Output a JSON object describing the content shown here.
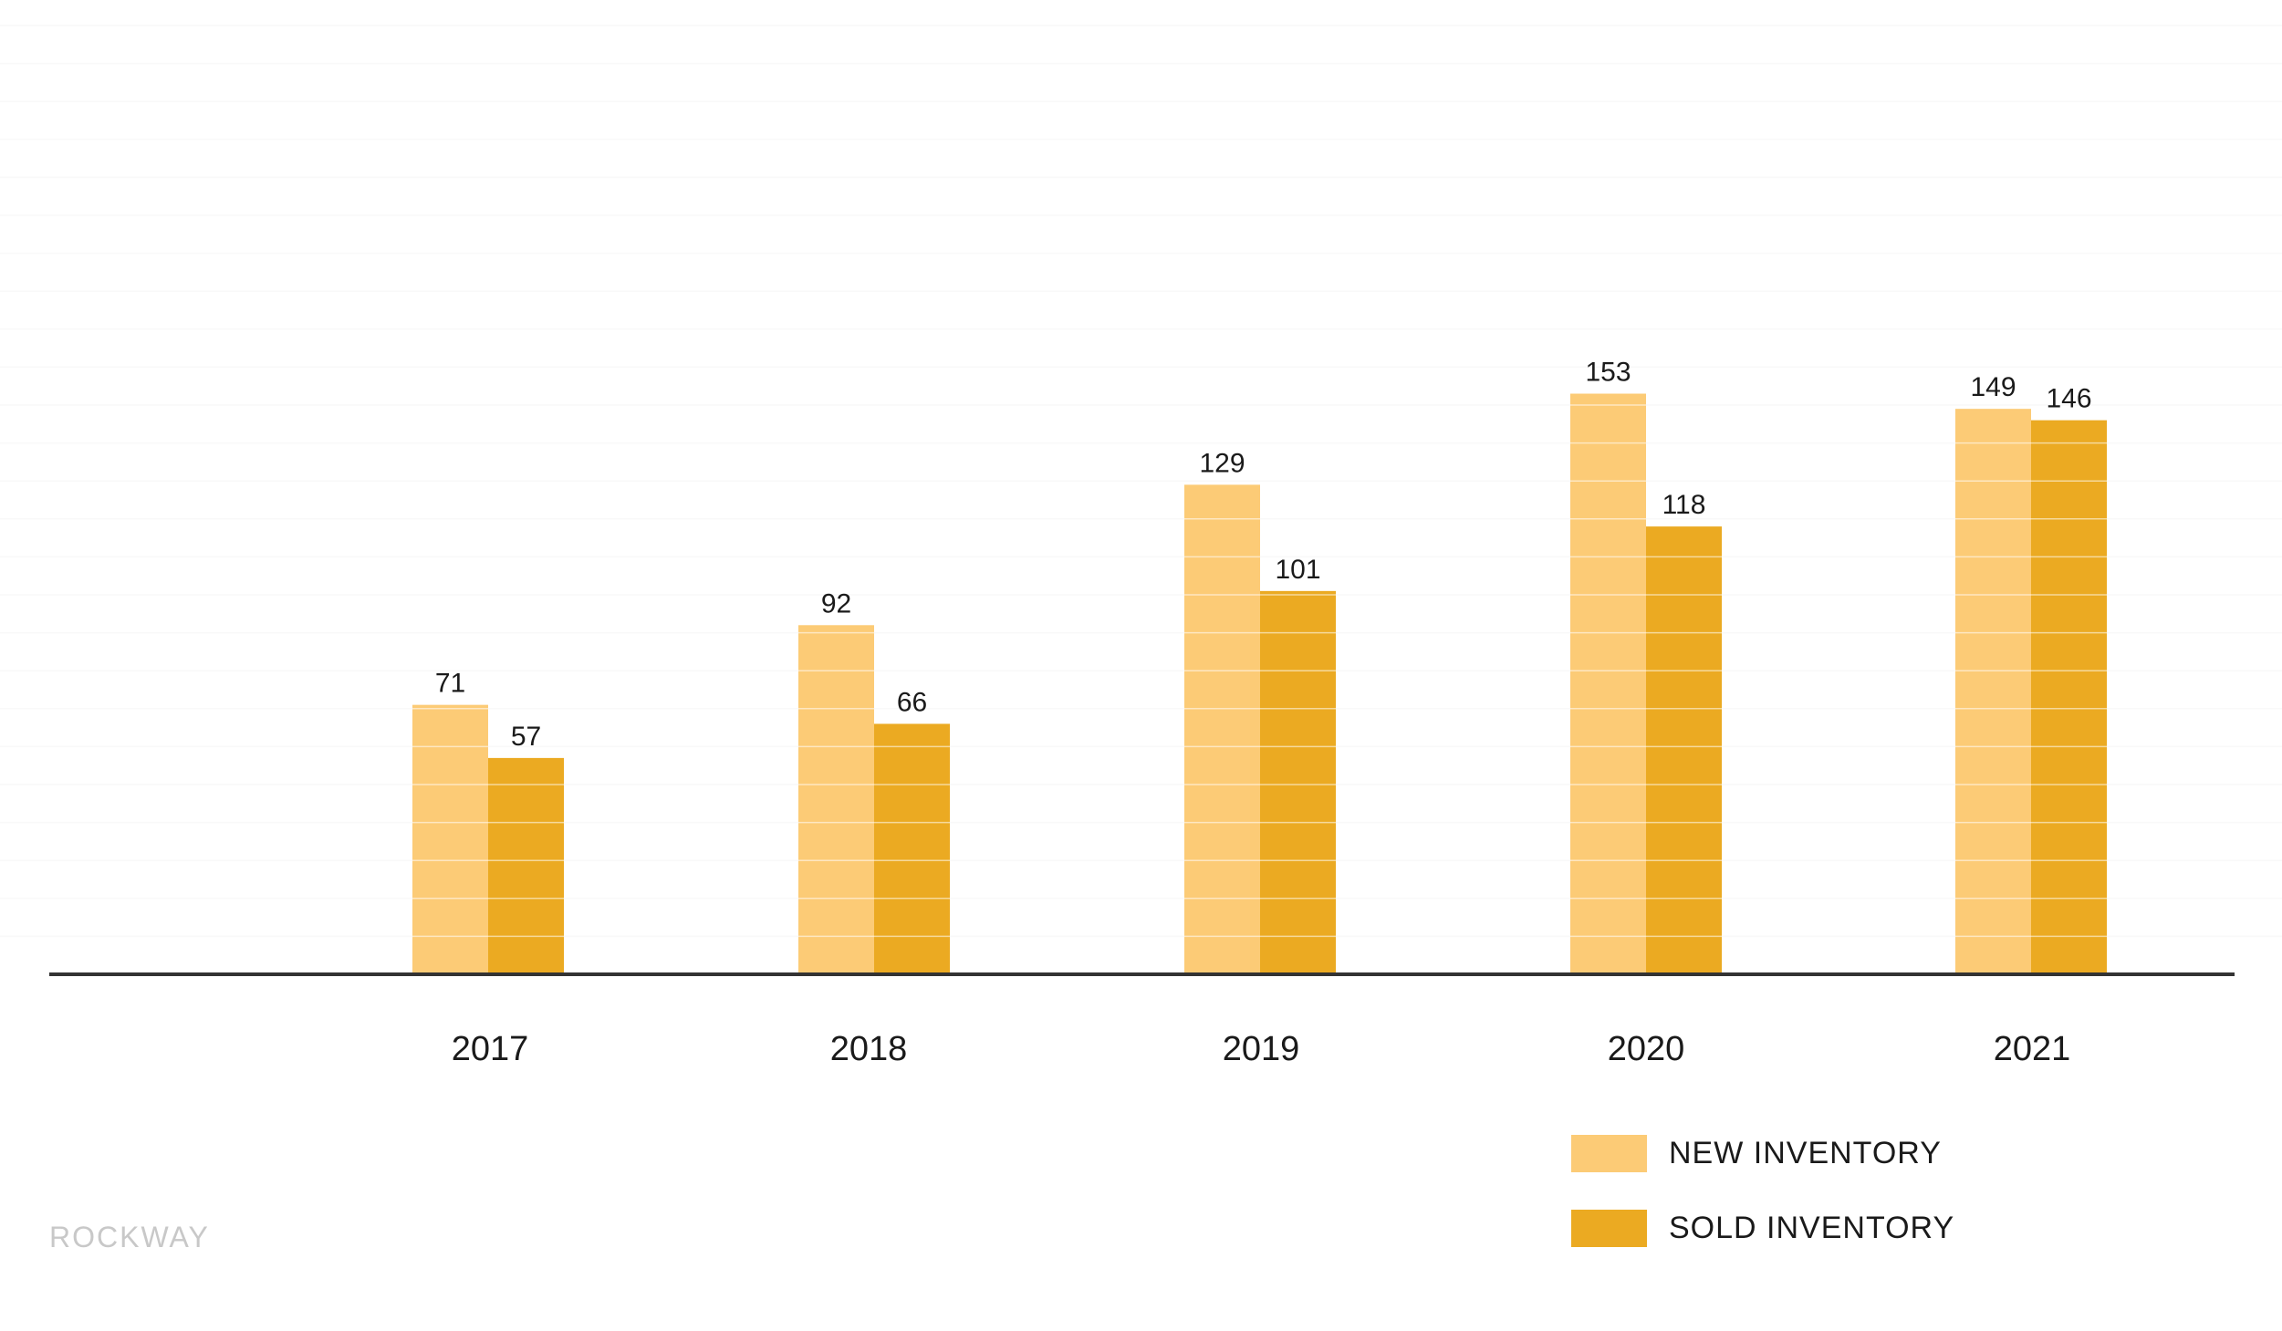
{
  "chart_data": {
    "type": "bar",
    "categories": [
      "2017",
      "2018",
      "2019",
      "2020",
      "2021"
    ],
    "series": [
      {
        "name": "NEW INVENTORY",
        "values": [
          71,
          92,
          129,
          153,
          149
        ],
        "color": "#fccb76"
      },
      {
        "name": "SOLD INVENTORY",
        "values": [
          57,
          66,
          101,
          118,
          146
        ],
        "color": "#ebaa22"
      }
    ],
    "title": "",
    "xlabel": "",
    "ylabel": "",
    "ylim": [
      0,
      250
    ],
    "grid": true,
    "legend_position": "bottom-right",
    "data_labels": true
  },
  "legend": {
    "new_label": "NEW INVENTORY",
    "sold_label": "SOLD INVENTORY"
  },
  "brand": {
    "text": "ROCKWAY"
  },
  "colors": {
    "new": "#fccb76",
    "sold": "#ebaa22",
    "axis": "#333333",
    "grid": "#f2f2f2"
  }
}
